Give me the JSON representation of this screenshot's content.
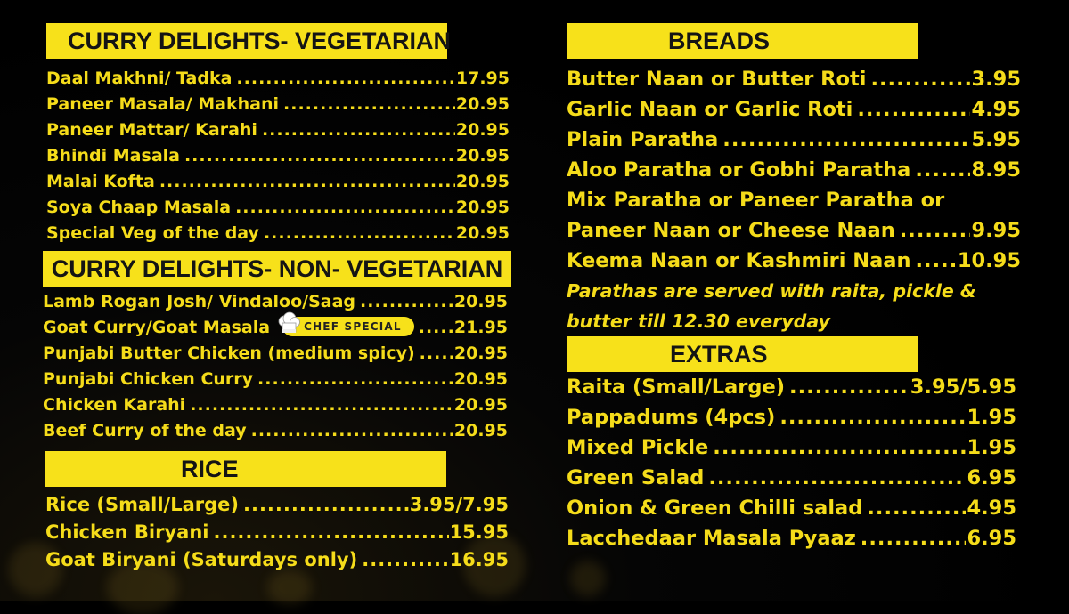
{
  "veg": {
    "header": "CURRY DELIGHTS- VEGETARIAN",
    "items": [
      {
        "name": "Daal Makhni/ Tadka",
        "price": "17.95"
      },
      {
        "name": "Paneer Masala/ Makhani",
        "price": "20.95"
      },
      {
        "name": "Paneer Mattar/ Karahi",
        "price": "20.95"
      },
      {
        "name": "Bhindi Masala",
        "price": "20.95"
      },
      {
        "name": "Malai Kofta",
        "price": "20.95"
      },
      {
        "name": "Soya Chaap Masala",
        "price": "20.95"
      },
      {
        "name": "Special Veg of the day",
        "price": "20.95"
      }
    ]
  },
  "nonveg": {
    "header": "CURRY DELIGHTS- NON- VEGETARIAN",
    "items": [
      {
        "name": "Lamb Rogan Josh/ Vindaloo/Saag",
        "price": "20.95"
      },
      {
        "name": "Goat Curry/Goat Masala",
        "price": "21.95",
        "badge": "CHEF SPECIAL"
      },
      {
        "name": "Punjabi Butter Chicken (medium spicy)",
        "price": "20.95"
      },
      {
        "name": "Punjabi Chicken Curry",
        "price": "20.95"
      },
      {
        "name": "Chicken Karahi",
        "price": "20.95"
      },
      {
        "name": "Beef Curry of the day",
        "price": "20.95"
      }
    ]
  },
  "rice": {
    "header": "RICE",
    "items": [
      {
        "name": "Rice (Small/Large)",
        "price": "3.95/7.95"
      },
      {
        "name": "Chicken Biryani",
        "price": "15.95"
      },
      {
        "name": "Goat Biryani (Saturdays only)",
        "price": "16.95"
      }
    ]
  },
  "breads": {
    "header": "BREADS",
    "items": [
      {
        "name": "Butter Naan or Butter Roti",
        "price": "3.95"
      },
      {
        "name": "Garlic Naan or Garlic Roti",
        "price": "4.95"
      },
      {
        "name": "Plain Paratha",
        "price": "5.95"
      },
      {
        "name": "Aloo Paratha or Gobhi Paratha",
        "price": "8.95"
      },
      {
        "name": "Mix Paratha or Paneer Paratha or",
        "price": ""
      },
      {
        "name": "Paneer Naan or Cheese Naan",
        "price": "9.95"
      },
      {
        "name": "Keema Naan or Kashmiri Naan",
        "price": "10.95"
      }
    ],
    "note_line1": "Parathas are served with raita, pickle &",
    "note_line2": "butter till 12.30 everyday"
  },
  "extras": {
    "header": "EXTRAS",
    "items": [
      {
        "name": "Raita (Small/Large)",
        "price": "3.95/5.95"
      },
      {
        "name": "Pappadums (4pcs)",
        "price": "1.95"
      },
      {
        "name": "Mixed Pickle",
        "price": "1.95"
      },
      {
        "name": "Green Salad",
        "price": "6.95"
      },
      {
        "name": "Onion & Green Chilli salad",
        "price": "4.95"
      },
      {
        "name": "Lacchedaar Masala Pyaaz",
        "price": "6.95"
      }
    ]
  },
  "colors": {
    "accent": "#f7e11a",
    "background": "#000000",
    "text_on_band": "#141414"
  },
  "icons": {
    "badge_icon": "chef-hat-icon"
  }
}
